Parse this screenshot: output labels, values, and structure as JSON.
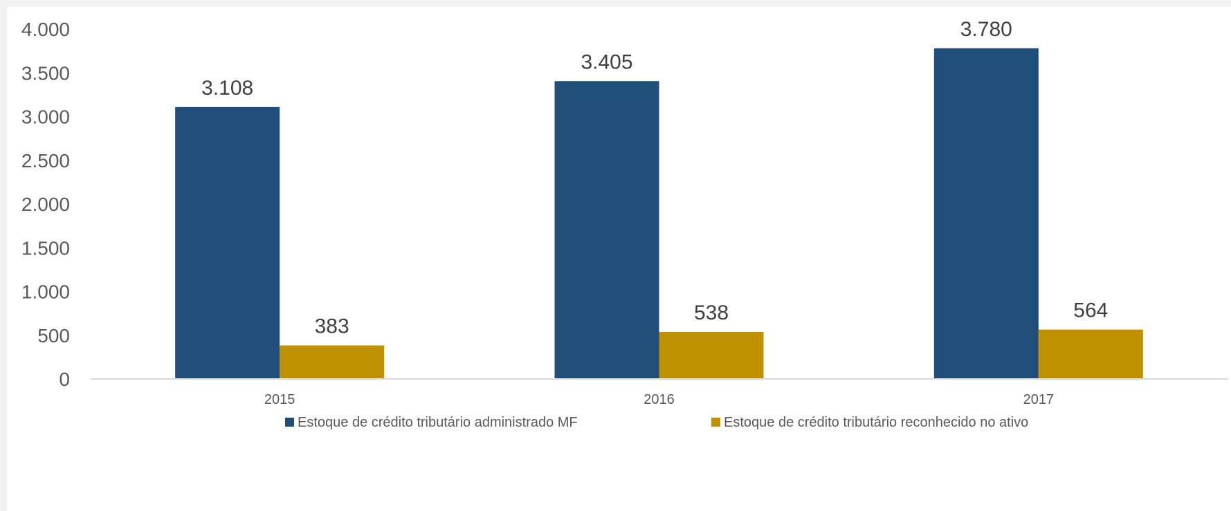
{
  "chart_data": {
    "type": "bar",
    "categories": [
      "2015",
      "2016",
      "2017"
    ],
    "series": [
      {
        "name": "Estoque de crédito tributário administrado MF",
        "values": [
          3108,
          3405,
          3780
        ],
        "labels": [
          "3.108",
          "3.405",
          "3.780"
        ],
        "color": "#1f4e79"
      },
      {
        "name": "Estoque de crédito tributário reconhecido no ativo",
        "values": [
          383,
          538,
          564
        ],
        "labels": [
          "383",
          "538",
          "564"
        ],
        "color": "#bf9000"
      }
    ],
    "ylim": [
      0,
      4000
    ],
    "yticks": [
      0,
      500,
      1000,
      1500,
      2000,
      2500,
      3000,
      3500,
      4000
    ],
    "ytick_labels": [
      "0",
      "500",
      "1.000",
      "1.500",
      "2.000",
      "2.500",
      "3.000",
      "3.500",
      "4.000"
    ],
    "grid": false,
    "legend_position": "bottom"
  }
}
